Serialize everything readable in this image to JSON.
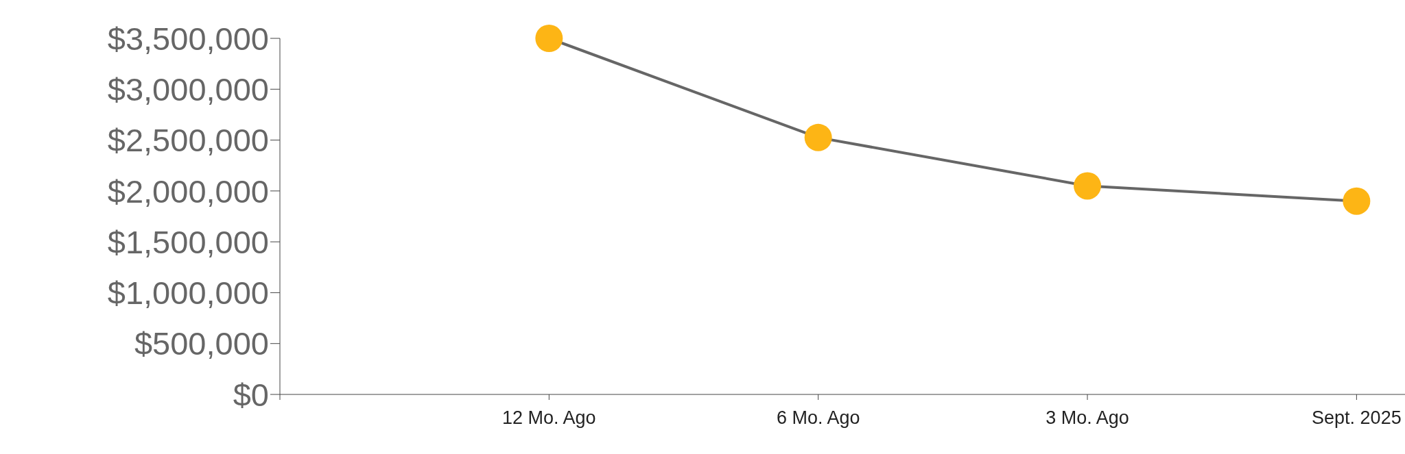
{
  "chart_data": {
    "type": "line",
    "categories": [
      null,
      "12 Mo. Ago",
      "6 Mo. Ago",
      "3 Mo. Ago",
      "Sept. 2025"
    ],
    "series": [
      {
        "color": "#666666",
        "colors": [
          null,
          "#fdb515",
          "#fdb515",
          "#fdb515",
          "#fdb515"
        ],
        "values": [
          null,
          3500000,
          2525000,
          2050000,
          1900000
        ]
      }
    ],
    "marker": "circle",
    "ylim": [
      0,
      3500000
    ],
    "yticks": [
      {
        "value": 0,
        "label": "$0"
      },
      {
        "value": 500000,
        "label": "$500,000"
      },
      {
        "value": 1000000,
        "label": "$1,000,000"
      },
      {
        "value": 1500000,
        "label": "$1,500,000"
      },
      {
        "value": 2000000,
        "label": "$2,000,000"
      },
      {
        "value": 2500000,
        "label": "$2,500,000"
      },
      {
        "value": 3000000,
        "label": "$3,000,000"
      },
      {
        "value": 3500000,
        "label": "$3,500,000"
      }
    ],
    "grid": false,
    "legend": false
  }
}
